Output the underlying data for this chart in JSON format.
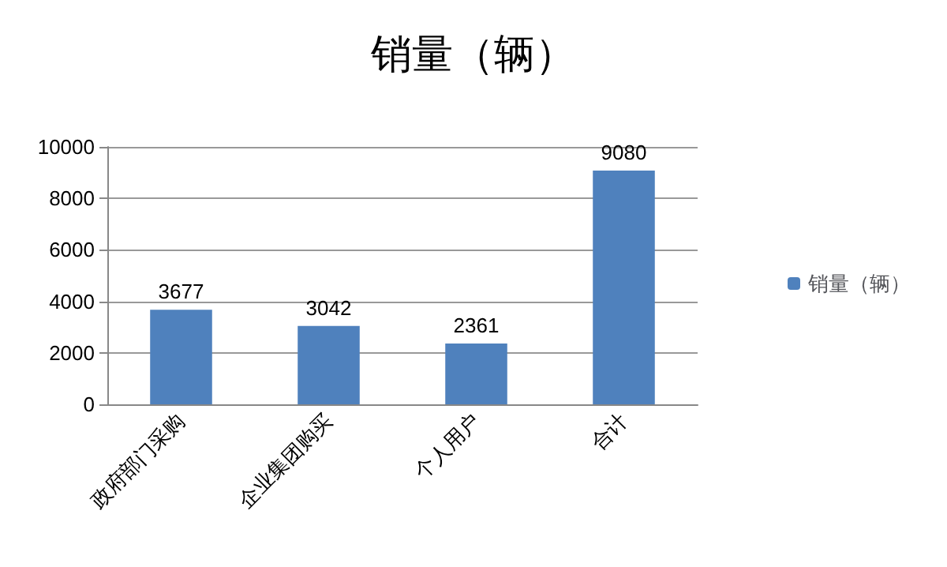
{
  "chart_data": {
    "type": "bar",
    "title": "销量（辆）",
    "categories": [
      "政府部门采购",
      "企业集团购买",
      "个人用户",
      "合计"
    ],
    "series": [
      {
        "name": "销量（辆）",
        "color": "#4f81bd",
        "values": [
          3677,
          3042,
          2361,
          9080
        ]
      }
    ],
    "ylim": [
      0,
      10000
    ],
    "yticks": [
      0,
      2000,
      4000,
      6000,
      8000,
      10000
    ],
    "grid": "y",
    "legend": "right",
    "data_labels": true
  }
}
